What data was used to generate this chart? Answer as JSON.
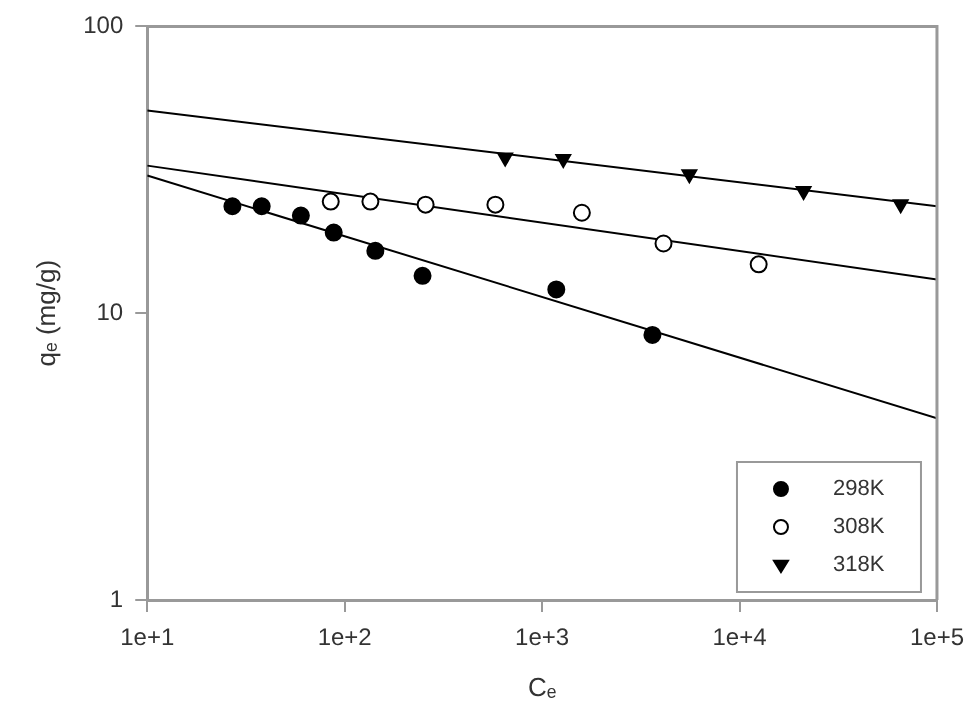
{
  "chart_data": {
    "type": "scatter",
    "xlabel": "Cₑ",
    "ylabel": "qₑ (mg/g)",
    "log": "xy",
    "xlim": [
      10,
      100000
    ],
    "ylim": [
      1,
      100
    ],
    "xticks": [
      {
        "value": 10,
        "label": "1e+1"
      },
      {
        "value": 100,
        "label": "1e+2"
      },
      {
        "value": 1000,
        "label": "1e+3"
      },
      {
        "value": 10000,
        "label": "1e+4"
      },
      {
        "value": 100000,
        "label": "1e+5"
      }
    ],
    "yticks": [
      1,
      10,
      100
    ],
    "grid": false,
    "legend": "bottom right",
    "series": [
      {
        "name": "298K",
        "marker": "circle",
        "color": "#000000",
        "x": [
          27,
          38,
          60,
          88,
          143,
          248,
          1180,
          3620
        ],
        "values": [
          23.6,
          23.6,
          21.9,
          19.1,
          16.5,
          13.5,
          12.1,
          8.4
        ]
      },
      {
        "name": "308K",
        "marker": "circle",
        "color": "#ffffff",
        "x": [
          85,
          135,
          257,
          580,
          1590,
          4120,
          12500
        ],
        "values": [
          24.5,
          24.5,
          23.9,
          23.9,
          22.4,
          17.5,
          14.8
        ]
      },
      {
        "name": "318K",
        "marker": "triangle",
        "color": "#000000",
        "x": [
          650,
          1280,
          5570,
          21100,
          65500
        ],
        "values": [
          34.9,
          34.5,
          30.5,
          26.7,
          24.0
        ]
      },
      {
        "type": "line",
        "marker": "none",
        "color": "#000000",
        "x": [
          10,
          100000
        ],
        "values": [
          30.2,
          4.3
        ]
      },
      {
        "type": "line",
        "marker": "none",
        "color": "#000000",
        "x": [
          10,
          100000
        ],
        "values": [
          32.7,
          13.1
        ]
      },
      {
        "type": "line",
        "marker": "none",
        "color": "#000000",
        "x": [
          10,
          100000
        ],
        "values": [
          50.9,
          23.6
        ]
      }
    ]
  }
}
